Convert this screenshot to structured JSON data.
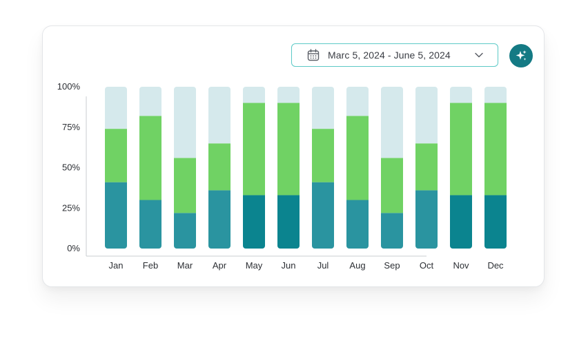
{
  "date_range": {
    "label": "Marc 5, 2024 - June 5, 2024",
    "icon": "calendar-icon",
    "dropdown_icon": "chevron-down-icon"
  },
  "ai_button": {
    "icon": "sparkles-icon",
    "color": "#147a84"
  },
  "colors": {
    "bottom": "#2a94a0",
    "bottom_dark": "#0b848f",
    "middle": "#70d264",
    "top": "#d5e9ec",
    "axis": "#c9cdd2",
    "accent_border": "#5bc9c6"
  },
  "chart_data": {
    "type": "bar",
    "stacked": true,
    "normalized": true,
    "categories": [
      "Jan",
      "Feb",
      "Mar",
      "Apr",
      "May",
      "Jun",
      "Jul",
      "Aug",
      "Sep",
      "Oct",
      "Nov",
      "Dec"
    ],
    "series": [
      {
        "values": [
          41,
          30,
          22,
          36,
          33,
          33,
          41,
          30,
          22,
          36,
          33,
          33
        ]
      },
      {
        "values": [
          33,
          52,
          34,
          29,
          57,
          57,
          33,
          52,
          34,
          29,
          57,
          57
        ]
      },
      {
        "values": [
          26,
          18,
          44,
          35,
          10,
          10,
          26,
          18,
          44,
          35,
          10,
          10
        ]
      }
    ],
    "bottom_series_shade": [
      "normal",
      "normal",
      "normal",
      "normal",
      "dark",
      "dark",
      "normal",
      "normal",
      "normal",
      "normal",
      "dark",
      "dark"
    ],
    "yticks": [
      "0%",
      "25%",
      "50%",
      "75%",
      "100%"
    ],
    "ylim": [
      0,
      100
    ],
    "title": "",
    "xlabel": "",
    "ylabel": ""
  }
}
